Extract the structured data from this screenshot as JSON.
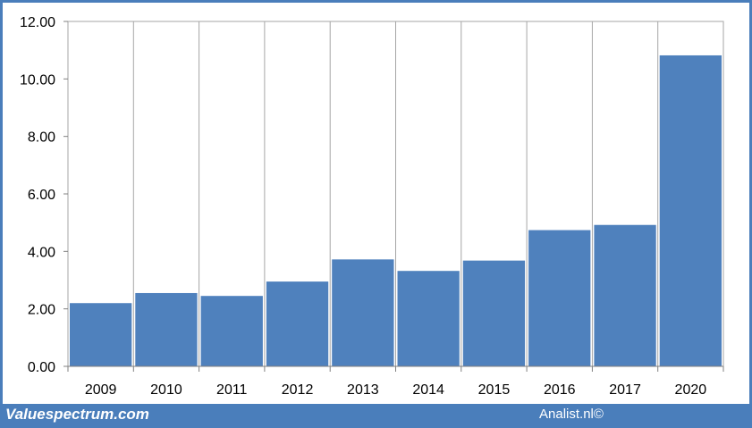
{
  "chart_data": {
    "type": "bar",
    "categories": [
      "2009",
      "2010",
      "2011",
      "2012",
      "2013",
      "2014",
      "2015",
      "2016",
      "2017",
      "2020"
    ],
    "values": [
      2.2,
      2.55,
      2.45,
      2.95,
      3.72,
      3.32,
      3.68,
      4.74,
      4.92,
      10.82
    ],
    "title": "",
    "xlabel": "",
    "ylabel": "",
    "ylim": [
      0,
      12
    ],
    "yticks": [
      "0.00",
      "2.00",
      "4.00",
      "6.00",
      "8.00",
      "10.00",
      "12.00"
    ],
    "grid": "vertical",
    "bar_color": "#4f81bd",
    "grid_color": "#a6a6a6"
  },
  "footer": {
    "left_text": "Valuespectrum.com",
    "right_text": "Analist.nl©",
    "background_color": "#4a7ebb"
  }
}
